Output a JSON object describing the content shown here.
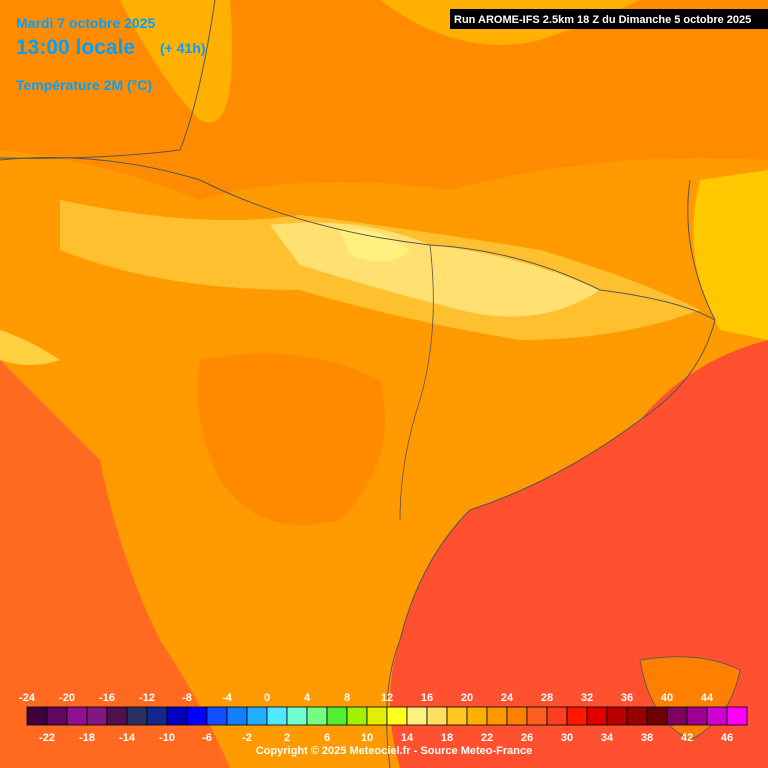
{
  "header": {
    "date": "Mardi 7 octobre 2025",
    "time": "13:00 locale",
    "lead": "(+ 41h)",
    "field": "Température 2M (°C)",
    "run": "Run AROME-IFS 2.5km 18 Z du Dimanche 5 octobre 2025"
  },
  "legend": {
    "labels": [
      -24,
      -22,
      -20,
      -18,
      -16,
      -14,
      -12,
      -10,
      -8,
      -6,
      -4,
      -2,
      0,
      2,
      4,
      6,
      8,
      10,
      12,
      14,
      16,
      18,
      20,
      22,
      24,
      26,
      28,
      30,
      32,
      34,
      36,
      38,
      40,
      42,
      44,
      46
    ],
    "colors": [
      "#400040",
      "#600860",
      "#901090",
      "#801880",
      "#501050",
      "#283060",
      "#102890",
      "#0000c0",
      "#0000ff",
      "#1050ff",
      "#1080ff",
      "#20b0ff",
      "#50e8ff",
      "#70ffd0",
      "#70ff80",
      "#50f030",
      "#a0f000",
      "#e0f000",
      "#ffff20",
      "#fff080",
      "#ffe060",
      "#ffc820",
      "#ffb000",
      "#ff9800",
      "#ff8000",
      "#ff6020",
      "#ff4020",
      "#ff1800",
      "#e00000",
      "#b80000",
      "#980000",
      "#700000",
      "#800060",
      "#a00090",
      "#d000d0",
      "#ff00ff"
    ]
  },
  "footer": {
    "copyright": "Copyright © 2025 Meteociel.fr - Source Meteo-France"
  }
}
